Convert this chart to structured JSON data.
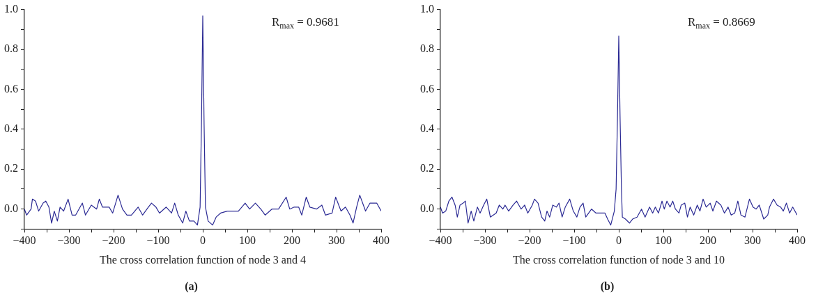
{
  "chart_data": [
    {
      "type": "line",
      "title": "(a)",
      "xlabel": "The cross correlation function of node 3 and 4",
      "annotations": [
        "R$_{max}$ = 0.9681"
      ],
      "color": "#2b2a94",
      "grid": false,
      "legend": false,
      "marker": "none",
      "line_style": "solid",
      "xlim": [
        -400,
        400
      ],
      "ylim": [
        -0.1,
        1.0
      ],
      "xticks": [
        {
          "value": -400,
          "label": "−400"
        },
        {
          "value": -350,
          "label": null
        },
        {
          "value": -300,
          "label": "−300"
        },
        {
          "value": -250,
          "label": null
        },
        {
          "value": -200,
          "label": "−200"
        },
        {
          "value": -150,
          "label": null
        },
        {
          "value": -100,
          "label": "−100"
        },
        {
          "value": -50,
          "label": null
        },
        0,
        {
          "value": 50,
          "label": null
        },
        100,
        {
          "value": 150,
          "label": null
        },
        200,
        {
          "value": 250,
          "label": null
        },
        300,
        {
          "value": 350,
          "label": null
        },
        400
      ],
      "yticks": [
        {
          "value": -0.1,
          "label": null
        },
        {
          "value": 0,
          "label": "0.0"
        },
        {
          "value": 0.1,
          "label": null
        },
        0.2,
        {
          "value": 0.3,
          "label": null
        },
        0.4,
        {
          "value": 0.5,
          "label": null
        },
        0.6,
        {
          "value": 0.7,
          "label": null
        },
        0.8,
        {
          "value": 0.9,
          "label": null
        },
        {
          "value": 1.0,
          "label": "1.0"
        }
      ],
      "x": [
        -400,
        -395,
        -385,
        -382,
        -375,
        -368,
        -358,
        -352,
        -345,
        -339,
        -333,
        -326,
        -320,
        -312,
        -302,
        -293,
        -285,
        -270,
        -263,
        -250,
        -238,
        -232,
        -225,
        -210,
        -202,
        -190,
        -180,
        -170,
        -160,
        -145,
        -135,
        -122,
        -115,
        -105,
        -97,
        -82,
        -70,
        -63,
        -55,
        -45,
        -38,
        -30,
        -20,
        -12,
        -6,
        -3,
        0,
        3,
        6,
        12,
        22,
        30,
        40,
        55,
        70,
        80,
        95,
        105,
        118,
        130,
        140,
        155,
        170,
        187,
        195,
        205,
        215,
        222,
        232,
        240,
        255,
        267,
        275,
        290,
        298,
        310,
        320,
        330,
        337,
        345,
        352,
        365,
        375,
        390,
        400
      ],
      "values": [
        0.0,
        -0.03,
        0.0,
        0.05,
        0.04,
        -0.01,
        0.03,
        0.04,
        0.01,
        -0.07,
        -0.01,
        -0.06,
        0.01,
        -0.01,
        0.05,
        -0.03,
        -0.03,
        0.03,
        -0.03,
        0.02,
        0.0,
        0.05,
        0.01,
        0.01,
        -0.02,
        0.07,
        0.0,
        -0.03,
        -0.03,
        0.01,
        -0.03,
        0.01,
        0.03,
        0.01,
        -0.02,
        0.01,
        -0.02,
        0.03,
        -0.03,
        -0.07,
        -0.01,
        -0.06,
        -0.06,
        -0.08,
        0.01,
        0.42,
        0.9681,
        0.42,
        0.01,
        -0.06,
        -0.08,
        -0.04,
        -0.02,
        -0.01,
        -0.01,
        -0.01,
        0.03,
        0.0,
        0.03,
        0.0,
        -0.03,
        0.0,
        0.0,
        0.06,
        0.0,
        0.01,
        0.01,
        -0.03,
        0.06,
        0.01,
        0.0,
        0.02,
        -0.03,
        -0.02,
        0.06,
        -0.01,
        0.01,
        -0.03,
        -0.07,
        0.01,
        0.07,
        -0.01,
        0.03,
        0.03,
        -0.01
      ]
    },
    {
      "type": "line",
      "title": "(b)",
      "xlabel": "The cross correlation function of node 3 and 10",
      "annotations": [
        "R$_{max}$ = 0.8669"
      ],
      "color": "#2b2a94",
      "grid": false,
      "legend": false,
      "marker": "none",
      "line_style": "solid",
      "xlim": [
        -400,
        400
      ],
      "ylim": [
        -0.1,
        1.0
      ],
      "xticks": [
        {
          "value": -400,
          "label": "−400"
        },
        {
          "value": -350,
          "label": null
        },
        {
          "value": -300,
          "label": "−300"
        },
        {
          "value": -250,
          "label": null
        },
        {
          "value": -200,
          "label": "−200"
        },
        {
          "value": -150,
          "label": null
        },
        {
          "value": -100,
          "label": "−100"
        },
        {
          "value": -50,
          "label": null
        },
        0,
        {
          "value": 50,
          "label": null
        },
        100,
        {
          "value": 150,
          "label": null
        },
        200,
        {
          "value": 250,
          "label": null
        },
        300,
        {
          "value": 350,
          "label": null
        },
        400
      ],
      "yticks": [
        {
          "value": -0.1,
          "label": null
        },
        {
          "value": 0,
          "label": "0.0"
        },
        {
          "value": 0.1,
          "label": null
        },
        0.2,
        {
          "value": 0.3,
          "label": null
        },
        0.4,
        {
          "value": 0.5,
          "label": null
        },
        0.6,
        {
          "value": 0.7,
          "label": null
        },
        0.8,
        {
          "value": 0.9,
          "label": null
        },
        {
          "value": 1.0,
          "label": "1.0"
        }
      ],
      "x": [
        -400,
        -395,
        -388,
        -381,
        -374,
        -367,
        -362,
        -356,
        -349,
        -344,
        -338,
        -331,
        -325,
        -317,
        -311,
        -303,
        -296,
        -288,
        -275,
        -268,
        -260,
        -255,
        -247,
        -237,
        -229,
        -219,
        -211,
        -204,
        -194,
        -189,
        -181,
        -173,
        -166,
        -161,
        -155,
        -148,
        -140,
        -134,
        -127,
        -120,
        -110,
        -102,
        -94,
        -87,
        -80,
        -74,
        -61,
        -51,
        -41,
        -31,
        -25,
        -18,
        -10,
        -6,
        -3,
        0,
        3,
        6,
        8,
        15,
        24,
        31,
        41,
        51,
        59,
        69,
        76,
        82,
        89,
        97,
        102,
        108,
        115,
        121,
        127,
        135,
        140,
        148,
        154,
        160,
        168,
        176,
        182,
        189,
        196,
        205,
        211,
        219,
        229,
        237,
        245,
        252,
        260,
        267,
        274,
        283,
        293,
        301,
        308,
        315,
        325,
        334,
        338,
        347,
        355,
        363,
        369,
        376,
        383,
        390,
        400
      ],
      "values": [
        0.01,
        -0.02,
        -0.01,
        0.04,
        0.06,
        0.02,
        -0.04,
        0.02,
        0.03,
        0.04,
        -0.07,
        -0.01,
        -0.06,
        0.01,
        -0.02,
        0.02,
        0.05,
        -0.04,
        -0.02,
        0.02,
        0.0,
        0.02,
        -0.01,
        0.02,
        0.04,
        0.0,
        0.02,
        -0.02,
        0.02,
        0.05,
        0.03,
        -0.04,
        -0.06,
        -0.01,
        -0.04,
        0.02,
        0.01,
        0.03,
        -0.04,
        0.01,
        0.05,
        -0.01,
        -0.04,
        0.01,
        0.03,
        -0.04,
        0.0,
        -0.02,
        -0.02,
        -0.02,
        -0.05,
        -0.08,
        -0.01,
        0.1,
        0.45,
        0.8669,
        0.45,
        0.1,
        -0.04,
        -0.05,
        -0.07,
        -0.05,
        -0.04,
        0.0,
        -0.04,
        0.01,
        -0.02,
        0.01,
        -0.02,
        0.04,
        0.0,
        0.04,
        0.01,
        0.04,
        0.0,
        -0.02,
        0.02,
        0.03,
        -0.04,
        0.01,
        -0.03,
        0.02,
        -0.01,
        0.05,
        0.01,
        0.03,
        -0.01,
        0.04,
        0.02,
        -0.02,
        0.01,
        -0.03,
        -0.02,
        0.04,
        -0.03,
        -0.04,
        0.05,
        0.01,
        0.0,
        0.02,
        -0.05,
        -0.03,
        0.01,
        0.05,
        0.02,
        0.01,
        -0.01,
        0.03,
        -0.02,
        0.01,
        -0.03
      ]
    }
  ]
}
